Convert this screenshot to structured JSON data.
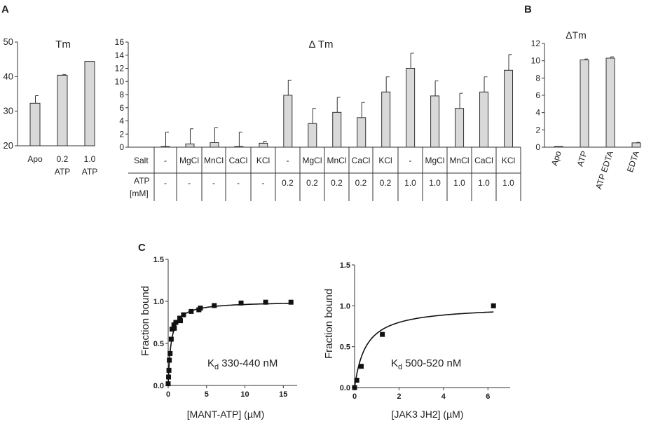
{
  "panel_labels": {
    "a": "A",
    "b": "B",
    "c": "C"
  },
  "chart_data": [
    {
      "id": "tm",
      "type": "bar",
      "title": "Tm",
      "categories": [
        [
          "Apo"
        ],
        [
          "0.2",
          "ATP"
        ],
        [
          "1.0",
          "ATP"
        ]
      ],
      "values": [
        32.3,
        40.4,
        44.4
      ],
      "errors": [
        2.2,
        0.2,
        0.0
      ],
      "ylim": [
        20,
        50
      ],
      "yticks": [
        "20",
        "30",
        "40",
        "50"
      ]
    },
    {
      "id": "dtm",
      "type": "bar",
      "title": "Δ Tm",
      "values": [
        0.0,
        0.5,
        0.7,
        0.0,
        0.6,
        7.9,
        3.6,
        5.3,
        4.5,
        8.4,
        12.0,
        7.8,
        5.9,
        8.4,
        11.7
      ],
      "errors": [
        2.3,
        2.3,
        2.3,
        2.3,
        0.3,
        2.3,
        2.3,
        2.3,
        2.3,
        2.3,
        2.3,
        2.3,
        2.3,
        2.3,
        2.4
      ],
      "ylim": [
        0,
        16
      ],
      "yticks": [
        "0",
        "2",
        "4",
        "6",
        "8",
        "10",
        "12",
        "14",
        "16"
      ],
      "table": {
        "salt_label": "Salt",
        "atp_label": [
          "ATP",
          "[mM]"
        ],
        "salt": [
          "-",
          "MgCl",
          "MnCl",
          "CaCl",
          "KCl",
          "-",
          "MgCl",
          "MnCl",
          "CaCl",
          "KCl",
          "-",
          "MgCl",
          "MnCl",
          "CaCl",
          "KCl"
        ],
        "atp": [
          "-",
          "-",
          "-",
          "-",
          "-",
          "0.2",
          "0.2",
          "0.2",
          "0.2",
          "0.2",
          "1.0",
          "1.0",
          "1.0",
          "1.0",
          "1.0"
        ]
      }
    },
    {
      "id": "dtm_b",
      "type": "bar",
      "title": "ΔTm",
      "categories": [
        "Apo",
        "ATP",
        "ATP EDTA",
        "EDTA"
      ],
      "values": [
        0.0,
        10.1,
        10.3,
        0.5
      ],
      "errors": [
        0.0,
        0.1,
        0.15,
        0.05
      ],
      "ylim": [
        0,
        12
      ],
      "yticks": [
        "0",
        "2",
        "4",
        "6",
        "8",
        "10",
        "12"
      ]
    },
    {
      "id": "mant",
      "type": "scatter",
      "ylabel": "Fraction bound",
      "xlabel": "[MANT-ATP] (µM)",
      "xlim": [
        0,
        16.8
      ],
      "ylim": [
        0,
        1.5
      ],
      "xticks": [
        "0",
        "5",
        "10",
        "15"
      ],
      "yticks": [
        "0.0",
        "0.5",
        "1.0",
        "1.5"
      ],
      "kd": 0.385,
      "annotation": {
        "prefix": "K",
        "sub": "d",
        "text": " 330-440 nM"
      },
      "points": [
        [
          0,
          0.02
        ],
        [
          0.05,
          0.1
        ],
        [
          0.1,
          0.18
        ],
        [
          0.15,
          0.3
        ],
        [
          0.25,
          0.38
        ],
        [
          0.4,
          0.55
        ],
        [
          0.5,
          0.67
        ],
        [
          0.75,
          0.72
        ],
        [
          0.8,
          0.68
        ],
        [
          1.0,
          0.75
        ],
        [
          1.5,
          0.8
        ],
        [
          1.6,
          0.77
        ],
        [
          2.0,
          0.84
        ],
        [
          3.0,
          0.88
        ],
        [
          4.0,
          0.9
        ],
        [
          4.2,
          0.92
        ],
        [
          6.0,
          0.95
        ],
        [
          9.5,
          0.98
        ],
        [
          12.7,
          0.99
        ],
        [
          16.0,
          0.99
        ]
      ]
    },
    {
      "id": "jak3",
      "type": "scatter",
      "ylabel": "Fraction bound",
      "xlabel": "[JAK3 JH2] (µM)",
      "xlim": [
        0,
        7
      ],
      "ylim": [
        0,
        1.5
      ],
      "xticks": [
        "0",
        "2",
        "4",
        "6"
      ],
      "yticks": [
        "0.0",
        "0.5",
        "1.0",
        "1.5"
      ],
      "kd": 0.51,
      "annotation": {
        "prefix": "K",
        "sub": "d",
        "text": " 500-520 nM"
      },
      "points": [
        [
          0,
          0.0
        ],
        [
          0.1,
          0.09
        ],
        [
          0.3,
          0.26
        ],
        [
          1.25,
          0.65
        ],
        [
          6.25,
          1.0
        ]
      ]
    }
  ]
}
